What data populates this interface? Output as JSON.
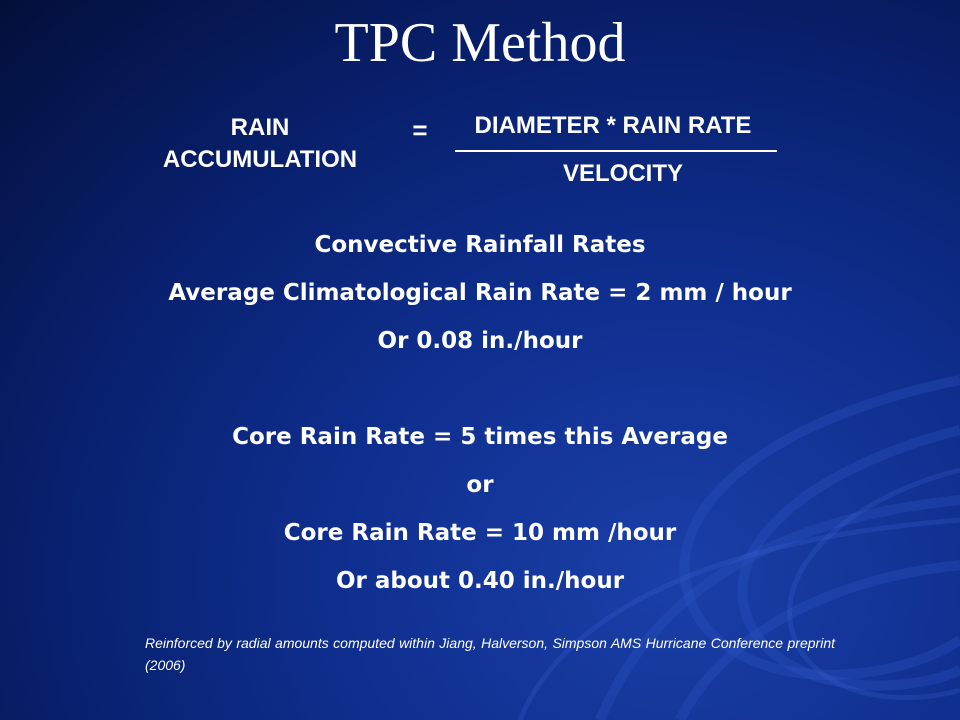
{
  "slide": {
    "title": "TPC Method",
    "equation": {
      "left_line1": "RAIN",
      "left_line2": "ACCUMULATION",
      "equals": "=",
      "numerator": "DIAMETER * RAIN RATE",
      "denominator": "VELOCITY"
    },
    "body": [
      "Convective Rainfall Rates",
      "Average Climatological Rain Rate = 2 mm / hour",
      "Or 0.08 in./hour",
      "Core Rain Rate = 5 times this Average",
      "or",
      "Core Rain Rate = 10 mm /hour",
      "Or about 0.40 in./hour"
    ],
    "footnote": "Reinforced by radial amounts computed within Jiang, Halverson, Simpson AMS Hurricane Conference preprint (2006)"
  },
  "colors": {
    "background": "#0f2f8f",
    "text": "#ffffff"
  }
}
